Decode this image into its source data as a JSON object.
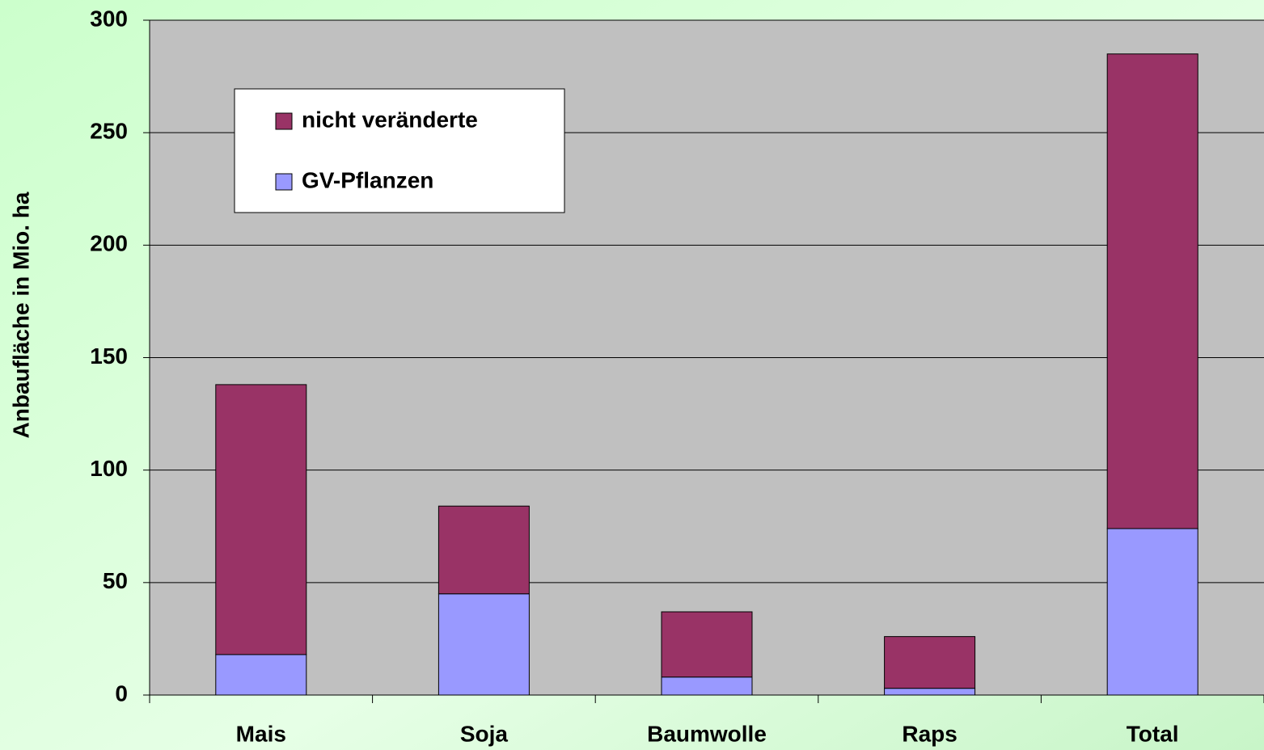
{
  "chart_data": {
    "type": "stacked_bar",
    "y_label": "Anbaufläche in Mio. ha",
    "categories": [
      "Mais",
      "Soja",
      "Baumwolle",
      "Raps",
      "Total"
    ],
    "series": [
      {
        "name": "GV-Pflanzen",
        "color": "#9999ff",
        "values": [
          18,
          45,
          8,
          3,
          74
        ]
      },
      {
        "name": "nicht veränderte",
        "color": "#993366",
        "values": [
          120,
          39,
          29,
          23,
          211
        ]
      }
    ],
    "ylim": [
      0,
      300
    ],
    "yticks": [
      0,
      50,
      100,
      150,
      200,
      250,
      300
    ],
    "grid": true
  }
}
